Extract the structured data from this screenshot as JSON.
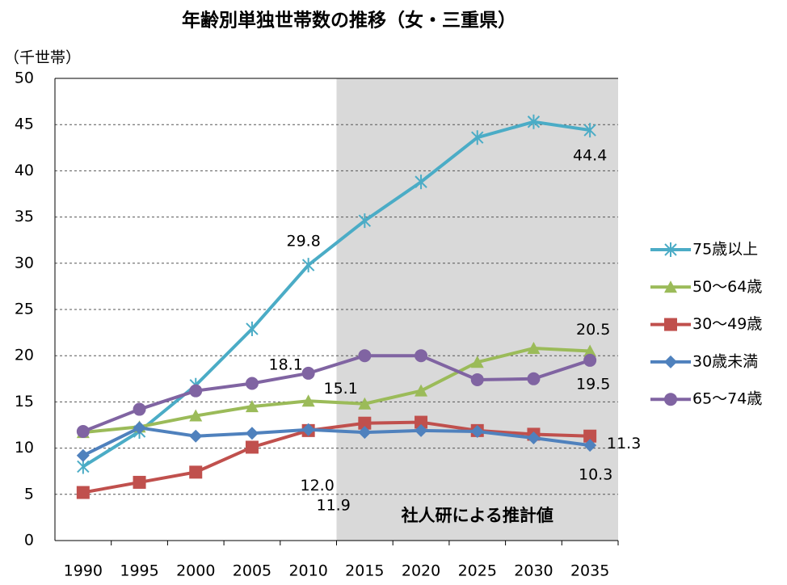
{
  "chart_data": {
    "type": "line",
    "title": "年齢別単独世帯数の推移（女・三重県）",
    "y_label": "（千世帯）",
    "categories": [
      "1990",
      "1995",
      "2000",
      "2005",
      "2010",
      "2015",
      "2020",
      "2025",
      "2030",
      "2035"
    ],
    "ylim": [
      0,
      50
    ],
    "yticks": [
      0,
      5,
      10,
      15,
      20,
      25,
      30,
      35,
      40,
      45,
      50
    ],
    "grid": true,
    "projection": {
      "label": "社人研による推計値",
      "start": "2015",
      "color": "#d9d9d9"
    },
    "series": [
      {
        "name": "75歳以上",
        "color": "#4bacc6",
        "marker": "asterisk",
        "values": [
          8.0,
          11.8,
          16.8,
          22.9,
          29.8,
          34.6,
          38.8,
          43.6,
          45.3,
          44.4
        ],
        "value_labels": [
          null,
          null,
          null,
          null,
          "29.8",
          null,
          null,
          null,
          null,
          "44.4"
        ]
      },
      {
        "name": "50〜64歳",
        "color": "#9bbb59",
        "marker": "triangle",
        "values": [
          11.7,
          12.3,
          13.5,
          14.5,
          15.1,
          14.8,
          16.2,
          19.3,
          20.8,
          20.5
        ],
        "value_labels": [
          null,
          null,
          null,
          null,
          "15.1",
          null,
          null,
          null,
          null,
          "20.5"
        ]
      },
      {
        "name": "30〜49歳",
        "color": "#c0504d",
        "marker": "square",
        "values": [
          5.2,
          6.3,
          7.4,
          10.1,
          11.9,
          12.7,
          12.8,
          11.9,
          11.5,
          11.3
        ],
        "value_labels": [
          null,
          null,
          null,
          null,
          "11.9",
          null,
          null,
          null,
          null,
          "11.3"
        ]
      },
      {
        "name": "30歳未満",
        "color": "#4f81bd",
        "marker": "diamond",
        "values": [
          9.2,
          12.2,
          11.3,
          11.6,
          12.0,
          11.7,
          11.9,
          11.8,
          11.1,
          10.3
        ],
        "value_labels": [
          null,
          null,
          null,
          null,
          "12.0",
          null,
          null,
          null,
          null,
          "10.3"
        ]
      },
      {
        "name": "65〜74歳",
        "color": "#8064a2",
        "marker": "circle",
        "values": [
          11.8,
          14.2,
          16.2,
          17.0,
          18.1,
          20.0,
          20.0,
          17.4,
          17.5,
          19.5
        ],
        "value_labels": [
          null,
          null,
          null,
          null,
          "18.1",
          null,
          null,
          null,
          null,
          "19.5"
        ]
      }
    ]
  }
}
